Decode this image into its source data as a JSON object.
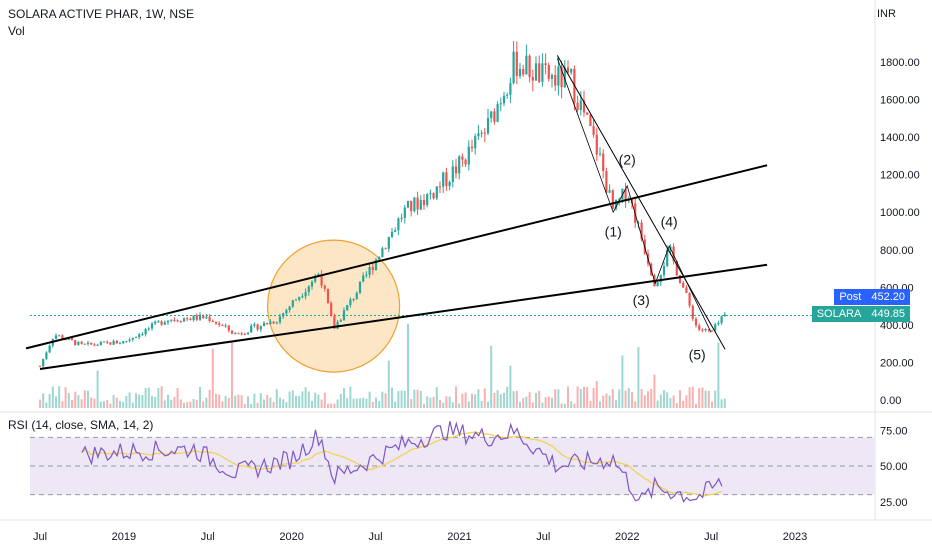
{
  "header": {
    "symbol_line": "SOLARA ACTIVE PHAR, 1W, NSE",
    "volume_label": "Vol"
  },
  "price_axis": {
    "currency": "INR",
    "ticks": [
      "1800.00",
      "1600.00",
      "1400.00",
      "1200.00",
      "1000.00",
      "800.00",
      "600.00",
      "400.00",
      "200.00",
      "0.00"
    ]
  },
  "rsi_pane": {
    "label": "RSI (14, close, SMA, 14, 2)",
    "ticks": [
      "75.00",
      "50.00",
      "25.00"
    ]
  },
  "time_axis": {
    "ticks": [
      "Jul",
      "2019",
      "Jul",
      "2020",
      "Jul",
      "2021",
      "Jul",
      "2022",
      "Jul",
      "2023"
    ]
  },
  "price_tags": {
    "post": {
      "label": "Post",
      "value": "452.20"
    },
    "last": {
      "label": "SOLARA",
      "value": "449.85"
    }
  },
  "wave_labels": [
    "(1)",
    "(2)",
    "(3)",
    "(4)",
    "(5)"
  ],
  "colors": {
    "up": "#26a69a",
    "down": "#ef5350",
    "rsi_line": "#7e57c2",
    "rsi_ma": "#f5d04a",
    "rsi_band": "#ede7f6",
    "highlight_fill": "#fbd8a6",
    "highlight_stroke": "#f0a030",
    "post_tag": "#2962ff",
    "last_tag": "#26a69a"
  },
  "chart_data": {
    "type": "candlestick",
    "timeframe": "1W",
    "series": [
      {
        "name": "SOLARA ACTIVE PHAR",
        "points": [
          {
            "x": "2018-07",
            "y": 180
          },
          {
            "x": "2018-08",
            "y": 350
          },
          {
            "x": "2018-10",
            "y": 290
          },
          {
            "x": "2019-01",
            "y": 310
          },
          {
            "x": "2019-04",
            "y": 430
          },
          {
            "x": "2019-07",
            "y": 440
          },
          {
            "x": "2019-09",
            "y": 350
          },
          {
            "x": "2019-12",
            "y": 430
          },
          {
            "x": "2020-03",
            "y": 680
          },
          {
            "x": "2020-04",
            "y": 380
          },
          {
            "x": "2020-06",
            "y": 620
          },
          {
            "x": "2020-09",
            "y": 1000
          },
          {
            "x": "2020-11",
            "y": 1100
          },
          {
            "x": "2021-01",
            "y": 1250
          },
          {
            "x": "2021-03",
            "y": 1450
          },
          {
            "x": "2021-05",
            "y": 1800
          },
          {
            "x": "2021-07",
            "y": 1720
          },
          {
            "x": "2021-09",
            "y": 1700
          },
          {
            "x": "2021-11",
            "y": 1300
          },
          {
            "x": "2021-12",
            "y": 1000
          },
          {
            "x": "2022-01",
            "y": 1120
          },
          {
            "x": "2022-03",
            "y": 620
          },
          {
            "x": "2022-04",
            "y": 800
          },
          {
            "x": "2022-05",
            "y": 600
          },
          {
            "x": "2022-06",
            "y": 380
          },
          {
            "x": "2022-07",
            "y": 360
          },
          {
            "x": "2022-08",
            "y": 450
          }
        ]
      },
      {
        "name": "RSI",
        "points": [
          {
            "x": "2018-10",
            "y": 58
          },
          {
            "x": "2019-01",
            "y": 60
          },
          {
            "x": "2019-06",
            "y": 62
          },
          {
            "x": "2019-09",
            "y": 45
          },
          {
            "x": "2020-01",
            "y": 55
          },
          {
            "x": "2020-03",
            "y": 72
          },
          {
            "x": "2020-04",
            "y": 42
          },
          {
            "x": "2020-09",
            "y": 65
          },
          {
            "x": "2020-12",
            "y": 75
          },
          {
            "x": "2021-03",
            "y": 70
          },
          {
            "x": "2021-05",
            "y": 74
          },
          {
            "x": "2021-08",
            "y": 50
          },
          {
            "x": "2021-12",
            "y": 55
          },
          {
            "x": "2022-02",
            "y": 25
          },
          {
            "x": "2022-03",
            "y": 35
          },
          {
            "x": "2022-06",
            "y": 28
          },
          {
            "x": "2022-08",
            "y": 40
          }
        ]
      }
    ],
    "ylim": [
      0,
      1850
    ],
    "rsi_levels": [
      70,
      50,
      30
    ],
    "last_price": 449.85,
    "post_price": 452.2,
    "xlabel": "",
    "ylabel": ""
  }
}
